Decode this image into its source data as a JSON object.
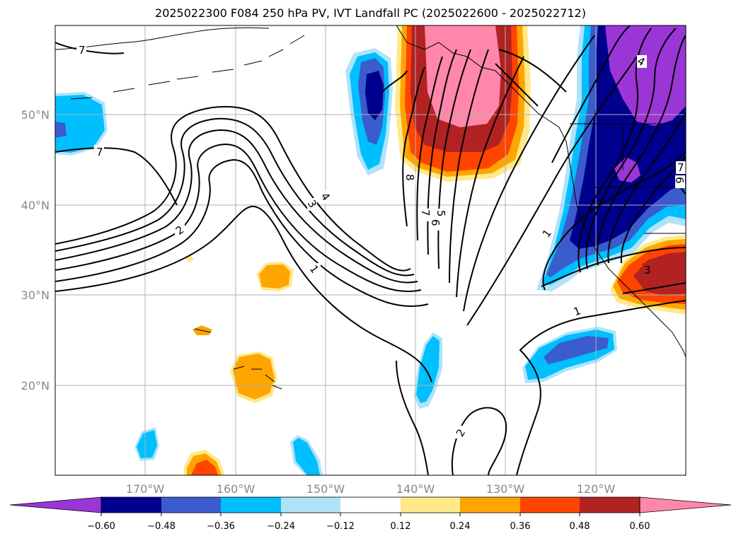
{
  "title": "2025022300 F084 250 hPa PV, IVT Landfall PC (2025022600 - 2025022712)",
  "map": {
    "lon_labels": [
      "170°W",
      "160°W",
      "150°W",
      "140°W",
      "130°W",
      "120°W"
    ],
    "lat_labels": [
      "50°N",
      "40°N",
      "30°N",
      "20°N"
    ],
    "contour_labels": [
      "7",
      "7",
      "2",
      "3",
      "4",
      "1",
      "8",
      "5",
      "6",
      "7",
      "1",
      "1",
      "4",
      "3",
      "2",
      "6",
      "7"
    ]
  },
  "colorbar": {
    "ticks": [
      "−0.60",
      "−0.48",
      "−0.36",
      "−0.24",
      "−0.12",
      "0.12",
      "0.24",
      "0.36",
      "0.48",
      "0.60"
    ],
    "colors": [
      "#9b36d6",
      "#00008e",
      "#3a5ccc",
      "#00bfff",
      "#afe3fa",
      "#ffffff",
      "#ffe98a",
      "#ffa500",
      "#ff4400",
      "#b22222",
      "#ff88aa"
    ]
  }
}
